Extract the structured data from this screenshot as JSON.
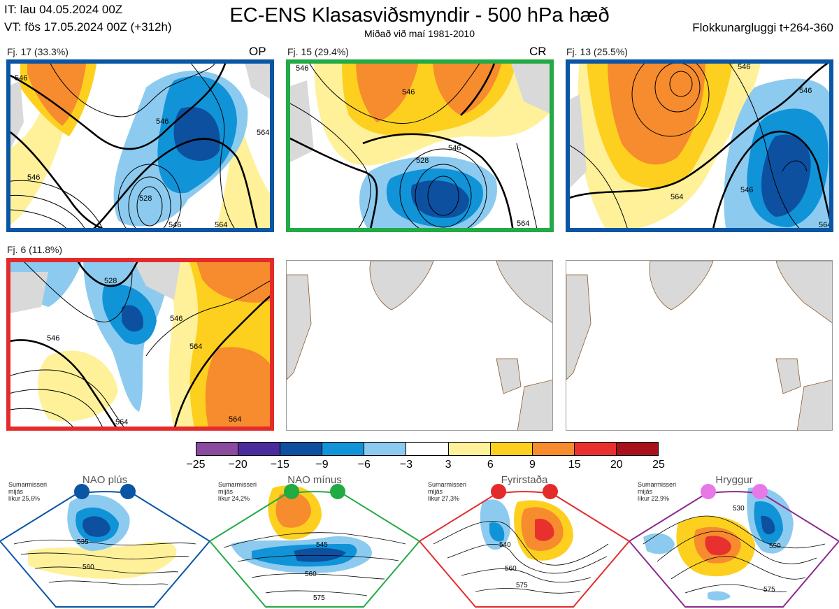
{
  "header": {
    "it_line": "IT: lau 04.05.2024 00Z",
    "vt_line": "VT: fös 17.05.2024 00Z  (+312h)",
    "title": "EC-ENS Klasasviðsmyndir - 500 hPa hæð",
    "subtitle": "Miðað við maí 1981-2010",
    "window": "Flokkunargluggi t+264-360"
  },
  "panels": [
    {
      "label": "Fj. 17 (33.3%)",
      "tag": "OP",
      "frame_color": "#0a55a4",
      "contours": [
        "546",
        "546",
        "564",
        "528",
        "546",
        "564",
        "546"
      ]
    },
    {
      "label": "Fj. 15 (29.4%)",
      "tag": "CR",
      "frame_color": "#22aa44",
      "contours": [
        "546",
        "546",
        "528",
        "546",
        "564"
      ]
    },
    {
      "label": "Fj. 13 (25.5%)",
      "tag": "",
      "frame_color": "#0a55a4",
      "contours": [
        "546",
        "546",
        "564",
        "546",
        "564"
      ]
    },
    {
      "label": "Fj. 6 (11.8%)",
      "tag": "",
      "frame_color": "#e42b2b",
      "contours": [
        "528",
        "546",
        "546",
        "564",
        "564",
        "564"
      ]
    }
  ],
  "colorbar": {
    "ticks": [
      "−25",
      "−20",
      "−15",
      "−9",
      "−6",
      "−3",
      "3",
      "6",
      "9",
      "15",
      "20",
      "25"
    ],
    "colors": [
      "#8a4a9e",
      "#4a2c9c",
      "#0d50a0",
      "#1193d8",
      "#8ccbef",
      "#ffffff",
      "#fff19a",
      "#fdd01f",
      "#f68c2d",
      "#e8312f",
      "#a8101a"
    ]
  },
  "regimes": [
    {
      "title": "NAO plús",
      "note": [
        "Sumarmisseri",
        "mijás",
        "líkur 25,6%"
      ],
      "color": "#0a55a4",
      "dot_color": "#0a55a4",
      "contours": [
        "535",
        "560"
      ]
    },
    {
      "title": "NAO mínus",
      "note": [
        "Sumarmisseri",
        "mijás",
        "líkur 24,2%"
      ],
      "color": "#22aa44",
      "dot_color": "#22aa44",
      "contours": [
        "545",
        "560",
        "575"
      ]
    },
    {
      "title": "Fyrirstaða",
      "note": [
        "Sumarmisseri",
        "mijás",
        "líkur 27,3%"
      ],
      "color": "#e42b2b",
      "dot_color": "#e42b2b",
      "contours": [
        "540",
        "560",
        "575"
      ]
    },
    {
      "title": "Hryggur",
      "note": [
        "Sumarmisseri",
        "mijás",
        "líkur 22,9%"
      ],
      "color": "#8b2a8f",
      "dot_color": "#e878e8",
      "contours": [
        "530",
        "550",
        "575"
      ]
    }
  ]
}
